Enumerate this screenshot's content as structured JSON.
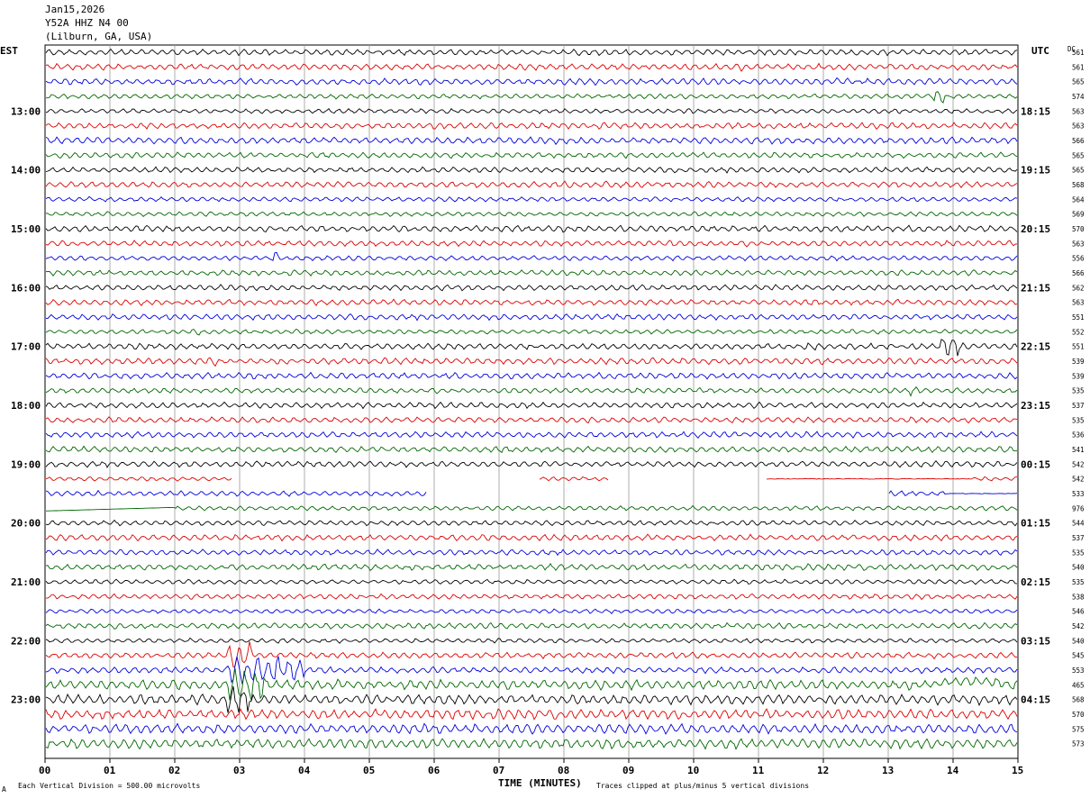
{
  "header": {
    "date": "Jan15,2026",
    "station": "Y52A HHZ N4 00",
    "location": "(Lilburn, GA, USA)"
  },
  "chart_data": {
    "type": "line",
    "left_label": "EST",
    "right_label": "UTC",
    "dc_label": "DC",
    "xlabel": "TIME (MINUTES)",
    "xlim": [
      0,
      15
    ],
    "x_ticks": [
      "00",
      "01",
      "02",
      "03",
      "04",
      "05",
      "06",
      "07",
      "08",
      "09",
      "10",
      "11",
      "12",
      "13",
      "14",
      "15"
    ],
    "left_hour_labels": [
      "13:00",
      "14:00",
      "15:00",
      "16:00",
      "17:00",
      "18:00",
      "19:00",
      "20:00",
      "21:00",
      "22:00",
      "23:00"
    ],
    "right_hour_labels": [
      "18:15",
      "19:15",
      "20:15",
      "21:15",
      "22:15",
      "23:15",
      "00:15",
      "01:15",
      "02:15",
      "03:15",
      "04:15"
    ],
    "trace_colors": [
      "#000000",
      "#dd0000",
      "#0000dd",
      "#006600"
    ],
    "dc_offsets": [
      "561",
      "561",
      "565",
      "574",
      "563",
      "563",
      "566",
      "565",
      "565",
      "568",
      "564",
      "569",
      "570",
      "563",
      "556",
      "566",
      "562",
      "563",
      "551",
      "552",
      "551",
      "539",
      "539",
      "535",
      "537",
      "535",
      "536",
      "541",
      "542",
      "542",
      "533",
      "976",
      "544",
      "537",
      "535",
      "540",
      "535",
      "538",
      "546",
      "542",
      "540",
      "545",
      "553",
      "465",
      "568",
      "570",
      "575",
      "573"
    ],
    "footer_left": "Each Vertical Division =  500.00 microvolts",
    "footer_right": "Traces clipped at plus/minus 5 vertical divisions",
    "footer_mark": "A"
  }
}
